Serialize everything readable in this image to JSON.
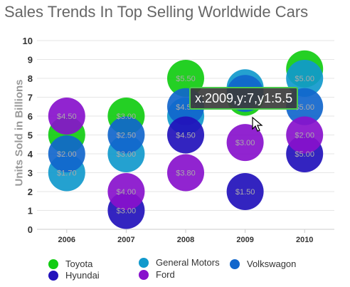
{
  "chart_data": {
    "type": "bubble",
    "title": "Sales Trends In Top Selling Worldwide Cars",
    "ylabel": "Units Sold in Billions",
    "xlabel": "",
    "categories": [
      "2006",
      "2007",
      "2008",
      "2009",
      "2010"
    ],
    "ylim": [
      0,
      10
    ],
    "yticks": [
      "0",
      "1",
      "2",
      "3",
      "4",
      "5",
      "6",
      "7",
      "8",
      "9",
      "10"
    ],
    "grid": true,
    "legend_position": "bottom",
    "series": [
      {
        "name": "Toyota",
        "color": "#11cc11",
        "points": [
          {
            "x": "2006",
            "y": 5,
            "label": ""
          },
          {
            "x": "2007",
            "y": 6,
            "label": "$3.00"
          },
          {
            "x": "2008",
            "y": 8,
            "label": "$5.50"
          },
          {
            "x": "2009",
            "y": 7,
            "label": ""
          },
          {
            "x": "2010",
            "y": 8.5,
            "label": ""
          }
        ]
      },
      {
        "name": "General Motors",
        "color": "#1199cc",
        "points": [
          {
            "x": "2006",
            "y": 3,
            "label": "$1.70"
          },
          {
            "x": "2007",
            "y": 4,
            "label": "$3.00"
          },
          {
            "x": "2008",
            "y": 6,
            "label": ""
          },
          {
            "x": "2009",
            "y": 7.5,
            "label": ""
          },
          {
            "x": "2010",
            "y": 8,
            "label": "$5.00"
          }
        ]
      },
      {
        "name": "Volkswagon",
        "color": "#1166cc",
        "points": [
          {
            "x": "2006",
            "y": 4,
            "label": "$2.00"
          },
          {
            "x": "2007",
            "y": 5,
            "label": "$2.50"
          },
          {
            "x": "2008",
            "y": 6.5,
            "label": "$4.50"
          },
          {
            "x": "2009",
            "y": 7.2,
            "label": ""
          },
          {
            "x": "2010",
            "y": 6.5,
            "label": "$5.00"
          }
        ]
      },
      {
        "name": "Hyundai",
        "color": "#2211bb",
        "points": [
          {
            "x": "2007",
            "y": 1,
            "label": "$3.00"
          },
          {
            "x": "2008",
            "y": 5,
            "label": "$4.50"
          },
          {
            "x": "2009",
            "y": 2,
            "label": "$1.50"
          },
          {
            "x": "2010",
            "y": 4,
            "label": "$5.00"
          }
        ]
      },
      {
        "name": "Ford",
        "color": "#8811cc",
        "points": [
          {
            "x": "2006",
            "y": 6,
            "label": "$4.50"
          },
          {
            "x": "2007",
            "y": 2,
            "label": "$4.00"
          },
          {
            "x": "2008",
            "y": 3,
            "label": "$3.80"
          },
          {
            "x": "2009",
            "y": 4.6,
            "label": "$3.00"
          },
          {
            "x": "2010",
            "y": 5,
            "label": "$2.00"
          }
        ]
      }
    ],
    "tooltip": "x:2009,y:7,y1:5.5"
  }
}
